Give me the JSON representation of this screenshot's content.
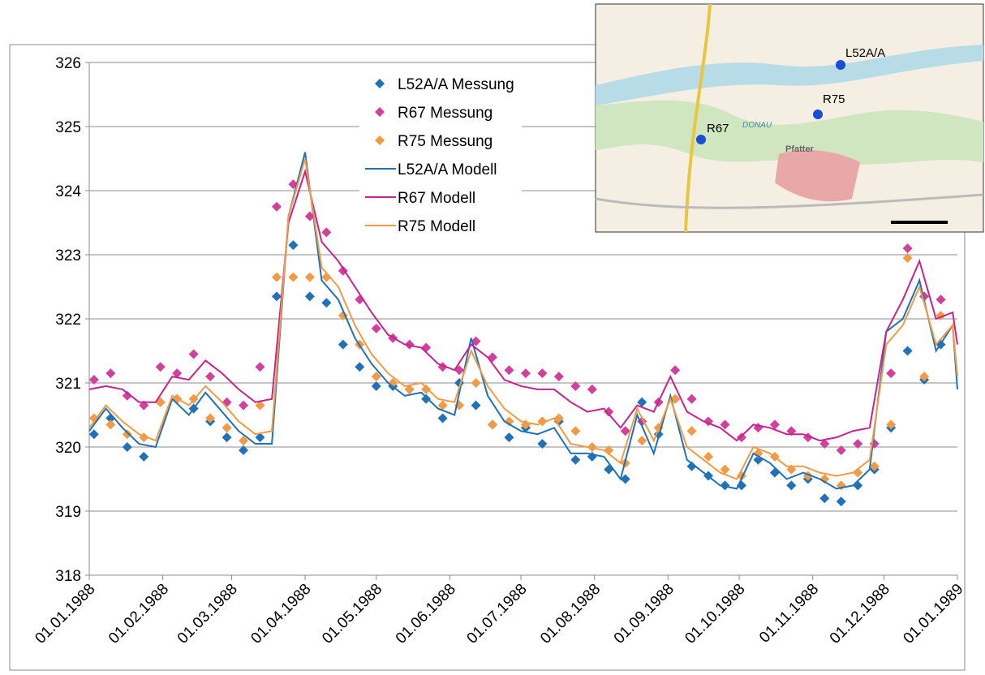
{
  "chart_data": {
    "type": "line",
    "ylim": [
      318,
      326
    ],
    "yticks": [
      318,
      319,
      320,
      321,
      322,
      323,
      324,
      325,
      326
    ],
    "grid": true,
    "xlim": [
      "1988-01-01",
      "1989-01-01"
    ],
    "xticks": [
      {
        "value": "1988-01-01",
        "label": "01.01.1988"
      },
      {
        "value": "1988-02-01",
        "label": "01.02.1988"
      },
      {
        "value": "1988-03-01",
        "label": "01.03.1988"
      },
      {
        "value": "1988-04-01",
        "label": "01.04.1988"
      },
      {
        "value": "1988-05-01",
        "label": "01.05.1988"
      },
      {
        "value": "1988-06-01",
        "label": "01.06.1988"
      },
      {
        "value": "1988-07-01",
        "label": "01.07.1988"
      },
      {
        "value": "1988-08-01",
        "label": "01.08.1988"
      },
      {
        "value": "1988-09-01",
        "label": "01.09.1988"
      },
      {
        "value": "1988-10-01",
        "label": "01.10.1988"
      },
      {
        "value": "1988-11-01",
        "label": "01.11.1988"
      },
      {
        "value": "1988-12-01",
        "label": "01.12.1988"
      },
      {
        "value": "1989-01-01",
        "label": "01.01.1989"
      }
    ],
    "legend": "upper left",
    "series": [
      {
        "name": "L52A/A Messung",
        "type": "scatter",
        "color": "#1f72b8",
        "x": [
          "1988-01-03",
          "1988-01-10",
          "1988-01-17",
          "1988-01-24",
          "1988-01-31",
          "1988-02-07",
          "1988-02-14",
          "1988-02-21",
          "1988-02-28",
          "1988-03-06",
          "1988-03-13",
          "1988-03-20",
          "1988-03-27",
          "1988-04-03",
          "1988-04-10",
          "1988-04-17",
          "1988-04-24",
          "1988-05-01",
          "1988-05-08",
          "1988-05-15",
          "1988-05-22",
          "1988-05-29",
          "1988-06-05",
          "1988-06-12",
          "1988-06-19",
          "1988-06-26",
          "1988-07-03",
          "1988-07-10",
          "1988-07-17",
          "1988-07-24",
          "1988-07-31",
          "1988-08-07",
          "1988-08-14",
          "1988-08-21",
          "1988-08-28",
          "1988-09-04",
          "1988-09-11",
          "1988-09-18",
          "1988-09-25",
          "1988-10-02",
          "1988-10-09",
          "1988-10-16",
          "1988-10-23",
          "1988-10-30",
          "1988-11-06",
          "1988-11-13",
          "1988-11-20",
          "1988-11-27",
          "1988-12-04",
          "1988-12-11",
          "1988-12-18",
          "1988-12-25"
        ],
        "values": [
          320.2,
          320.45,
          320.0,
          319.85,
          320.7,
          320.75,
          320.6,
          320.4,
          320.15,
          319.95,
          320.15,
          322.35,
          323.15,
          322.35,
          322.25,
          321.6,
          321.25,
          320.95,
          320.95,
          320.9,
          320.75,
          320.45,
          321.0,
          320.65,
          320.35,
          320.15,
          320.3,
          320.05,
          320.4,
          319.8,
          319.85,
          319.65,
          319.5,
          320.7,
          320.2,
          320.75,
          319.7,
          319.55,
          319.4,
          319.4,
          319.8,
          319.6,
          319.4,
          319.5,
          319.2,
          319.15,
          319.4,
          319.65,
          320.3,
          321.5,
          321.05,
          321.6
        ]
      },
      {
        "name": "R67 Messung",
        "type": "scatter",
        "color": "#d23f9c",
        "x": [
          "1988-01-03",
          "1988-01-10",
          "1988-01-17",
          "1988-01-24",
          "1988-01-31",
          "1988-02-07",
          "1988-02-14",
          "1988-02-21",
          "1988-02-28",
          "1988-03-06",
          "1988-03-13",
          "1988-03-20",
          "1988-03-27",
          "1988-04-03",
          "1988-04-10",
          "1988-04-17",
          "1988-04-24",
          "1988-05-01",
          "1988-05-08",
          "1988-05-15",
          "1988-05-22",
          "1988-05-29",
          "1988-06-05",
          "1988-06-12",
          "1988-06-19",
          "1988-06-26",
          "1988-07-03",
          "1988-07-10",
          "1988-07-17",
          "1988-07-24",
          "1988-07-31",
          "1988-08-07",
          "1988-08-14",
          "1988-08-21",
          "1988-08-28",
          "1988-09-04",
          "1988-09-11",
          "1988-09-18",
          "1988-09-25",
          "1988-10-02",
          "1988-10-09",
          "1988-10-16",
          "1988-10-23",
          "1988-10-30",
          "1988-11-06",
          "1988-11-13",
          "1988-11-20",
          "1988-11-27",
          "1988-12-04",
          "1988-12-11",
          "1988-12-18",
          "1988-12-25"
        ],
        "values": [
          321.05,
          321.15,
          320.8,
          320.65,
          321.25,
          321.15,
          321.45,
          321.1,
          320.7,
          320.65,
          321.25,
          323.75,
          324.1,
          323.6,
          323.35,
          322.75,
          322.3,
          321.85,
          321.7,
          321.6,
          321.55,
          321.25,
          321.2,
          321.65,
          321.4,
          321.2,
          321.15,
          321.15,
          321.1,
          320.95,
          320.9,
          320.55,
          320.25,
          320.4,
          320.7,
          321.2,
          320.75,
          320.4,
          320.35,
          320.15,
          320.3,
          320.35,
          320.25,
          320.15,
          320.05,
          319.95,
          320.05,
          320.05,
          321.15,
          323.1,
          322.35,
          322.3
        ]
      },
      {
        "name": "R75 Messung",
        "type": "scatter",
        "color": "#f39a45",
        "x": [
          "1988-01-03",
          "1988-01-10",
          "1988-01-17",
          "1988-01-24",
          "1988-01-31",
          "1988-02-07",
          "1988-02-14",
          "1988-02-21",
          "1988-02-28",
          "1988-03-06",
          "1988-03-13",
          "1988-03-20",
          "1988-03-27",
          "1988-04-03",
          "1988-04-10",
          "1988-04-17",
          "1988-04-24",
          "1988-05-01",
          "1988-05-08",
          "1988-05-15",
          "1988-05-22",
          "1988-05-29",
          "1988-06-05",
          "1988-06-12",
          "1988-06-19",
          "1988-06-26",
          "1988-07-03",
          "1988-07-10",
          "1988-07-17",
          "1988-07-24",
          "1988-07-31",
          "1988-08-07",
          "1988-08-14",
          "1988-08-21",
          "1988-08-28",
          "1988-09-04",
          "1988-09-11",
          "1988-09-18",
          "1988-09-25",
          "1988-10-02",
          "1988-10-09",
          "1988-10-16",
          "1988-10-23",
          "1988-10-30",
          "1988-11-06",
          "1988-11-13",
          "1988-11-20",
          "1988-11-27",
          "1988-12-04",
          "1988-12-11",
          "1988-12-18",
          "1988-12-25"
        ],
        "values": [
          320.45,
          320.35,
          320.2,
          320.15,
          320.7,
          320.75,
          320.75,
          320.45,
          320.3,
          320.1,
          320.65,
          322.65,
          322.65,
          322.65,
          322.65,
          322.05,
          321.6,
          321.1,
          321.0,
          320.9,
          320.9,
          320.65,
          320.65,
          321.0,
          320.35,
          320.4,
          320.35,
          320.4,
          320.45,
          320.25,
          320.0,
          319.95,
          319.75,
          320.1,
          320.3,
          320.75,
          320.25,
          319.85,
          319.65,
          319.55,
          319.9,
          319.85,
          319.65,
          319.55,
          319.5,
          319.4,
          319.6,
          319.7,
          320.35,
          322.95,
          321.1,
          322.05
        ]
      },
      {
        "name": "L52A/A Modell",
        "type": "line",
        "color": "#1f72b8",
        "x": [
          "1988-01-01",
          "1988-01-08",
          "1988-01-15",
          "1988-01-22",
          "1988-01-29",
          "1988-02-05",
          "1988-02-12",
          "1988-02-19",
          "1988-02-26",
          "1988-03-04",
          "1988-03-11",
          "1988-03-18",
          "1988-03-25",
          "1988-04-01",
          "1988-04-08",
          "1988-04-15",
          "1988-04-22",
          "1988-04-29",
          "1988-05-06",
          "1988-05-13",
          "1988-05-20",
          "1988-05-27",
          "1988-06-03",
          "1988-06-10",
          "1988-06-17",
          "1988-06-24",
          "1988-07-01",
          "1988-07-08",
          "1988-07-15",
          "1988-07-22",
          "1988-07-29",
          "1988-08-05",
          "1988-08-12",
          "1988-08-19",
          "1988-08-26",
          "1988-09-02",
          "1988-09-09",
          "1988-09-16",
          "1988-09-23",
          "1988-09-30",
          "1988-10-07",
          "1988-10-14",
          "1988-10-21",
          "1988-10-28",
          "1988-11-04",
          "1988-11-11",
          "1988-11-18",
          "1988-11-25",
          "1988-12-02",
          "1988-12-09",
          "1988-12-16",
          "1988-12-23",
          "1988-12-30",
          "1989-01-01"
        ],
        "values": [
          320.25,
          320.6,
          320.3,
          320.05,
          320.0,
          320.75,
          320.5,
          320.85,
          320.55,
          320.25,
          320.05,
          320.05,
          323.6,
          324.6,
          322.6,
          322.3,
          321.7,
          321.3,
          321.0,
          320.8,
          320.85,
          320.6,
          320.5,
          321.7,
          320.8,
          320.4,
          320.25,
          320.2,
          320.3,
          319.9,
          319.9,
          319.85,
          319.5,
          320.5,
          319.9,
          320.8,
          319.8,
          319.6,
          319.4,
          319.35,
          319.9,
          319.75,
          319.5,
          319.6,
          319.5,
          319.35,
          319.4,
          319.65,
          321.8,
          322.0,
          322.6,
          321.5,
          321.9,
          320.9
        ]
      },
      {
        "name": "R67 Modell",
        "type": "line",
        "color": "#c8238c",
        "x": [
          "1988-01-01",
          "1988-01-08",
          "1988-01-15",
          "1988-01-22",
          "1988-01-29",
          "1988-02-05",
          "1988-02-12",
          "1988-02-19",
          "1988-02-26",
          "1988-03-04",
          "1988-03-11",
          "1988-03-18",
          "1988-03-25",
          "1988-04-01",
          "1988-04-08",
          "1988-04-15",
          "1988-04-22",
          "1988-04-29",
          "1988-05-06",
          "1988-05-13",
          "1988-05-20",
          "1988-05-27",
          "1988-06-03",
          "1988-06-10",
          "1988-06-17",
          "1988-06-24",
          "1988-07-01",
          "1988-07-08",
          "1988-07-15",
          "1988-07-22",
          "1988-07-29",
          "1988-08-05",
          "1988-08-12",
          "1988-08-19",
          "1988-08-26",
          "1988-09-02",
          "1988-09-09",
          "1988-09-16",
          "1988-09-23",
          "1988-09-30",
          "1988-10-07",
          "1988-10-14",
          "1988-10-21",
          "1988-10-28",
          "1988-11-04",
          "1988-11-11",
          "1988-11-18",
          "1988-11-25",
          "1988-12-02",
          "1988-12-09",
          "1988-12-16",
          "1988-12-23",
          "1988-12-30",
          "1989-01-01"
        ],
        "values": [
          320.9,
          320.95,
          320.9,
          320.7,
          320.7,
          321.1,
          321.05,
          321.35,
          321.15,
          320.9,
          320.7,
          320.75,
          323.5,
          324.3,
          323.2,
          322.9,
          322.5,
          322.1,
          321.75,
          321.6,
          321.55,
          321.3,
          321.2,
          321.6,
          321.4,
          321.05,
          320.95,
          320.9,
          320.9,
          320.7,
          320.55,
          320.6,
          320.3,
          320.65,
          320.55,
          321.1,
          320.55,
          320.4,
          320.3,
          320.1,
          320.35,
          320.3,
          320.2,
          320.2,
          320.1,
          320.15,
          320.25,
          320.3,
          321.8,
          322.3,
          322.9,
          322.0,
          322.1,
          321.6
        ]
      },
      {
        "name": "R75 Modell",
        "type": "line",
        "color": "#f39a45",
        "x": [
          "1988-01-01",
          "1988-01-08",
          "1988-01-15",
          "1988-01-22",
          "1988-01-29",
          "1988-02-05",
          "1988-02-12",
          "1988-02-19",
          "1988-02-26",
          "1988-03-04",
          "1988-03-11",
          "1988-03-18",
          "1988-03-25",
          "1988-04-01",
          "1988-04-08",
          "1988-04-15",
          "1988-04-22",
          "1988-04-29",
          "1988-05-06",
          "1988-05-13",
          "1988-05-20",
          "1988-05-27",
          "1988-06-03",
          "1988-06-10",
          "1988-06-17",
          "1988-06-24",
          "1988-07-01",
          "1988-07-08",
          "1988-07-15",
          "1988-07-22",
          "1988-07-29",
          "1988-08-05",
          "1988-08-12",
          "1988-08-19",
          "1988-08-26",
          "1988-09-02",
          "1988-09-09",
          "1988-09-16",
          "1988-09-23",
          "1988-09-30",
          "1988-10-07",
          "1988-10-14",
          "1988-10-21",
          "1988-10-28",
          "1988-11-04",
          "1988-11-11",
          "1988-11-18",
          "1988-11-25",
          "1988-12-02",
          "1988-12-09",
          "1988-12-16",
          "1988-12-23",
          "1988-12-30",
          "1989-01-01"
        ],
        "values": [
          320.3,
          320.65,
          320.4,
          320.2,
          320.1,
          320.8,
          320.65,
          320.95,
          320.7,
          320.4,
          320.2,
          320.25,
          323.6,
          324.5,
          322.8,
          322.5,
          321.9,
          321.45,
          321.15,
          320.95,
          321.0,
          320.75,
          320.7,
          321.5,
          320.95,
          320.6,
          320.4,
          320.35,
          320.45,
          320.05,
          320.0,
          319.95,
          319.75,
          320.6,
          320.1,
          320.75,
          320.0,
          319.8,
          319.6,
          319.5,
          320.0,
          319.9,
          319.7,
          319.7,
          319.6,
          319.55,
          319.6,
          319.8,
          321.6,
          321.9,
          322.5,
          321.6,
          321.9,
          321.1
        ]
      }
    ]
  },
  "map": {
    "labels": [
      "L52A/A",
      "R67",
      "R75"
    ],
    "places": [
      "Pfatter",
      "DONAU"
    ]
  }
}
